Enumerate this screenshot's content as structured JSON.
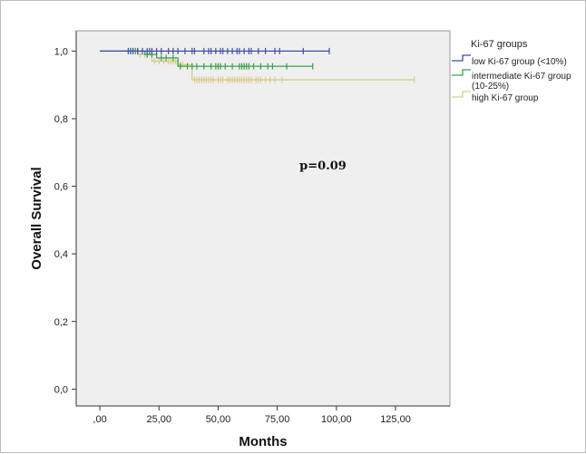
{
  "chart_data": {
    "type": "line",
    "title": "",
    "xlabel": "Months",
    "ylabel": "Overall Survival",
    "xlim": [
      -10,
      148
    ],
    "ylim": [
      -0.05,
      1.06
    ],
    "xticks": [
      0,
      25,
      50,
      75,
      100,
      125
    ],
    "xtick_labels": [
      ",00",
      "25,00",
      "50,00",
      "75,00",
      "100,00",
      "125,00"
    ],
    "yticks": [
      0,
      0.2,
      0.4,
      0.6,
      0.8,
      1.0
    ],
    "ytick_labels": [
      "0,0",
      "0,2",
      "0,4",
      "0,6",
      "0,8",
      "1,0"
    ],
    "grid": false,
    "annotation": "p=0.09",
    "legend": {
      "title": "Ki-67 groups",
      "placement": "right"
    },
    "series": [
      {
        "name": "low Ki-67 group (<10%)",
        "color": "#3b4fa8",
        "steps": [
          [
            0,
            1.0
          ],
          [
            97,
            1.0
          ]
        ],
        "censored": [
          12,
          13,
          14,
          16,
          18,
          20,
          21,
          22,
          24,
          26,
          29,
          31,
          33,
          36,
          39,
          40,
          44,
          46,
          47,
          49,
          51,
          52,
          54,
          56,
          58,
          59,
          61,
          63,
          64,
          67,
          70,
          74,
          76,
          86,
          97
        ]
      },
      {
        "name": "intermediate Ki-67 group (10-25%)",
        "color": "#36a24a",
        "steps": [
          [
            0,
            1.0
          ],
          [
            19,
            1.0
          ],
          [
            19,
            0.99
          ],
          [
            24,
            0.99
          ],
          [
            24,
            0.98
          ],
          [
            33,
            0.98
          ],
          [
            33,
            0.955
          ],
          [
            90,
            0.955
          ]
        ],
        "censored": [
          13,
          15,
          16,
          20,
          22,
          26,
          28,
          31,
          34,
          37,
          39,
          41,
          44,
          47,
          49,
          50,
          51,
          53,
          56,
          59,
          60,
          61,
          62,
          63,
          65,
          68,
          71,
          73,
          79,
          90
        ]
      },
      {
        "name": "high Ki-67 group",
        "color": "#d6cc8a",
        "steps": [
          [
            0,
            1.0
          ],
          [
            16,
            1.0
          ],
          [
            16,
            0.99
          ],
          [
            22,
            0.99
          ],
          [
            22,
            0.97
          ],
          [
            33,
            0.97
          ],
          [
            33,
            0.96
          ],
          [
            39,
            0.96
          ],
          [
            39,
            0.915
          ],
          [
            133,
            0.915
          ]
        ],
        "censored": [
          13,
          14,
          15,
          17,
          19,
          20,
          23,
          25,
          27,
          29,
          30,
          31,
          32,
          34,
          35,
          40,
          41,
          42,
          43,
          44,
          45,
          46,
          47,
          48,
          50,
          51,
          52,
          54,
          55,
          56,
          57,
          58,
          59,
          60,
          61,
          62,
          63,
          64,
          66,
          67,
          68,
          70,
          72,
          74,
          77,
          133
        ]
      }
    ]
  }
}
